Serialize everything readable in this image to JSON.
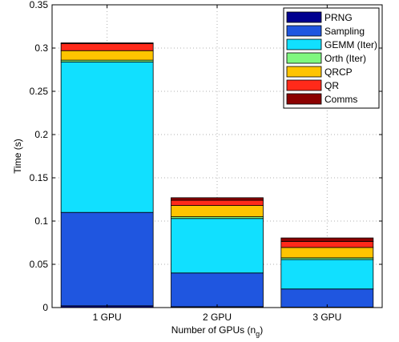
{
  "chart_data": {
    "type": "bar",
    "stacked": true,
    "categories": [
      "1 GPU",
      "2 GPU",
      "3 GPU"
    ],
    "xlabel": "Number of GPUs (n",
    "xlabel_subscript": "g",
    "xlabel_suffix": ")",
    "ylabel": "Time (s)",
    "ylim": [
      0,
      0.35
    ],
    "yticks": [
      "0",
      "0.05",
      "0.1",
      "0.15",
      "0.2",
      "0.25",
      "0.3",
      "0.35"
    ],
    "grid": true,
    "legend_position": "top-right",
    "series": [
      {
        "name": "PRNG",
        "color": "#00008f",
        "values": [
          0.002,
          0.001,
          0.0005
        ]
      },
      {
        "name": "Sampling",
        "color": "#1f56e0",
        "values": [
          0.108,
          0.039,
          0.021
        ]
      },
      {
        "name": "GEMM (Iter)",
        "color": "#11e0ff",
        "values": [
          0.174,
          0.063,
          0.034
        ]
      },
      {
        "name": "Orth (Iter)",
        "color": "#7ff77f",
        "values": [
          0.002,
          0.002,
          0.002
        ]
      },
      {
        "name": "QRCP",
        "color": "#ffc400",
        "values": [
          0.011,
          0.013,
          0.012
        ]
      },
      {
        "name": "QR",
        "color": "#ff2a1a",
        "values": [
          0.008,
          0.006,
          0.007
        ]
      },
      {
        "name": "Comms",
        "color": "#8b0000",
        "values": [
          0.001,
          0.003,
          0.004
        ]
      }
    ]
  }
}
